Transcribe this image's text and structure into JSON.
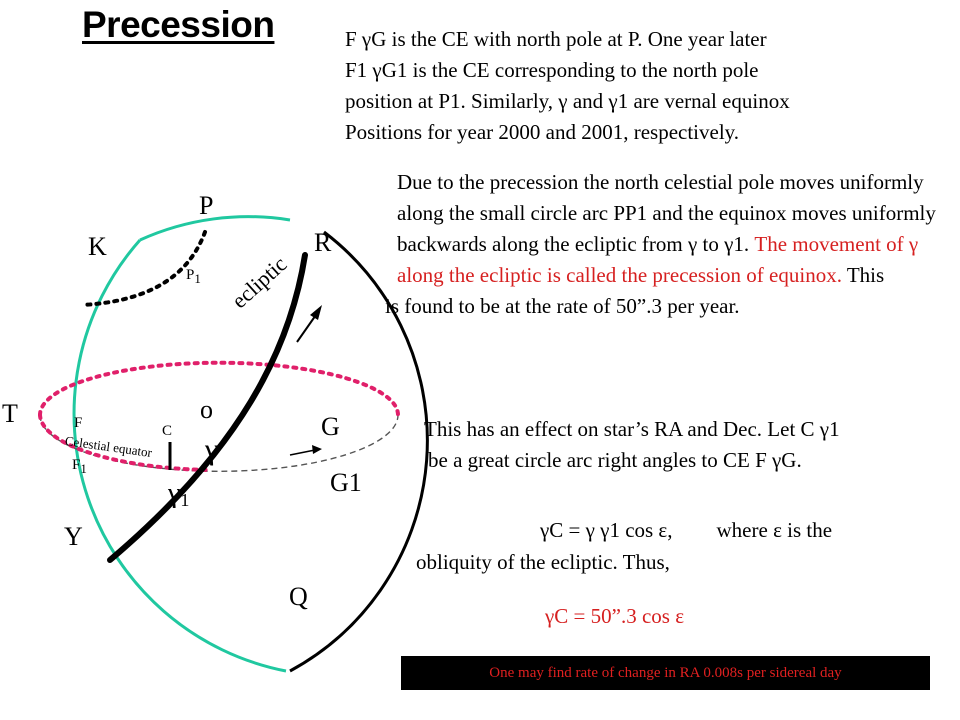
{
  "title": "Precession",
  "text": {
    "p1": [
      "F γG is the CE with north pole at P. One year later",
      "F1 γG1 is the CE corresponding to the north pole",
      "position at P1. Similarly, γ and γ1 are vernal equinox",
      "Positions for year 2000 and 2001, respectively."
    ],
    "p2": {
      "black1": "Due to the precession the north celestial pole moves uniformly along the small circle arc PP1 and the equinox moves uniformly backwards along the ecliptic from γ to γ1.",
      "red": "The movement of γ along the ecliptic is called the precession of equinox.",
      "black2": "This",
      "line_last": "is found to be at the rate of 50”.3 per year."
    },
    "p3": {
      "l1": "This has an effect on star’s RA and Dec. Let C γ1",
      "l2": "be a great circle arc right angles to CE F γG."
    },
    "eq1": {
      "formula": "γC = γ γ1 cos ε,",
      "tail": "where ε is the",
      "line2": "obliquity of   the ecliptic. Thus,"
    },
    "eq2": "γC = 50”.3 cos ε",
    "note": "One may find rate of change in RA  0.008s per sidereal day"
  },
  "diagram": {
    "labels": {
      "P": "P",
      "K": "K",
      "R": "R",
      "P1": "P",
      "P1_sub": "1",
      "ecliptic": "ecliptic",
      "T": "T",
      "o": "o",
      "G": "G",
      "G1": "G1",
      "F": "F",
      "C": "C",
      "F1": "F",
      "F1_sub": "1",
      "celestial_equator": "Celestial equator",
      "gamma": "γ",
      "gamma1": "γ",
      "gamma1_sub": "1",
      "Y": "Y",
      "Q": "Q"
    },
    "colors": {
      "teal": "#20c8a0",
      "black": "#000000",
      "pink": "#e0206a",
      "grey": "#555555",
      "red": "#d62020"
    }
  }
}
